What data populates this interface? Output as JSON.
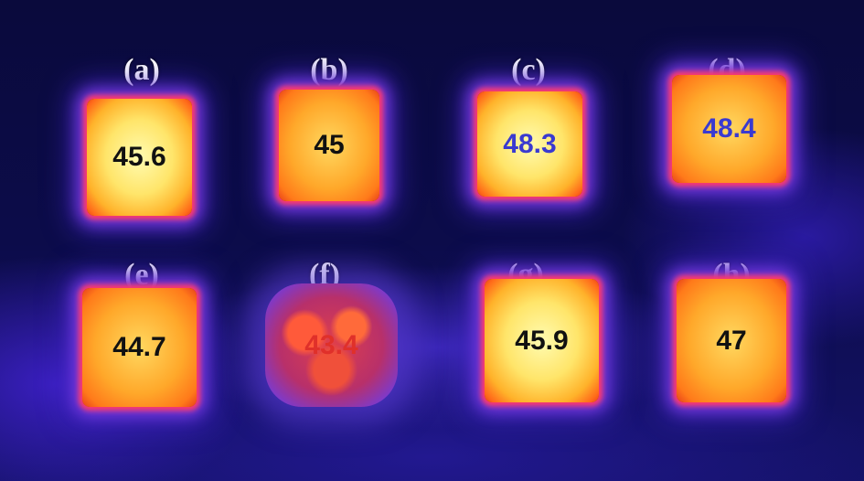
{
  "panels": [
    {
      "label": "(a)",
      "value": 45.6
    },
    {
      "label": "(b)",
      "value": 45
    },
    {
      "label": "(c)",
      "value": 48.3
    },
    {
      "label": "(d)",
      "value": 48.4
    },
    {
      "label": "(e)",
      "value": 44.7
    },
    {
      "label": "(f)",
      "value": 43.4
    },
    {
      "label": "(g)",
      "value": 45.9
    },
    {
      "label": "(h)",
      "value": 47
    }
  ]
}
